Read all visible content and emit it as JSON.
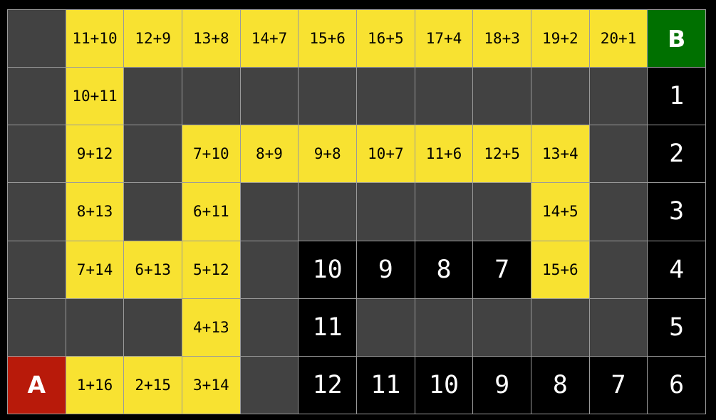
{
  "colors": {
    "path": "#f8e231",
    "wall": "#424242",
    "countdown": "#000000",
    "goal": "#007000",
    "start": "#b81a0a"
  },
  "grid": [
    [
      {
        "c": "d",
        "t": ""
      },
      {
        "c": "y",
        "t": "11+10"
      },
      {
        "c": "y",
        "t": "12+9"
      },
      {
        "c": "y",
        "t": "13+8"
      },
      {
        "c": "y",
        "t": "14+7"
      },
      {
        "c": "y",
        "t": "15+6"
      },
      {
        "c": "y",
        "t": "16+5"
      },
      {
        "c": "y",
        "t": "17+4"
      },
      {
        "c": "y",
        "t": "18+3"
      },
      {
        "c": "y",
        "t": "19+2"
      },
      {
        "c": "y",
        "t": "20+1"
      },
      {
        "c": "g",
        "t": "B"
      }
    ],
    [
      {
        "c": "d",
        "t": ""
      },
      {
        "c": "y",
        "t": "10+11"
      },
      {
        "c": "d",
        "t": ""
      },
      {
        "c": "d",
        "t": ""
      },
      {
        "c": "d",
        "t": ""
      },
      {
        "c": "d",
        "t": ""
      },
      {
        "c": "d",
        "t": ""
      },
      {
        "c": "d",
        "t": ""
      },
      {
        "c": "d",
        "t": ""
      },
      {
        "c": "d",
        "t": ""
      },
      {
        "c": "d",
        "t": ""
      },
      {
        "c": "k",
        "t": "1"
      }
    ],
    [
      {
        "c": "d",
        "t": ""
      },
      {
        "c": "y",
        "t": "9+12"
      },
      {
        "c": "d",
        "t": ""
      },
      {
        "c": "y",
        "t": "7+10"
      },
      {
        "c": "y",
        "t": "8+9"
      },
      {
        "c": "y",
        "t": "9+8"
      },
      {
        "c": "y",
        "t": "10+7"
      },
      {
        "c": "y",
        "t": "11+6"
      },
      {
        "c": "y",
        "t": "12+5"
      },
      {
        "c": "y",
        "t": "13+4"
      },
      {
        "c": "d",
        "t": ""
      },
      {
        "c": "k",
        "t": "2"
      }
    ],
    [
      {
        "c": "d",
        "t": ""
      },
      {
        "c": "y",
        "t": "8+13"
      },
      {
        "c": "d",
        "t": ""
      },
      {
        "c": "y",
        "t": "6+11"
      },
      {
        "c": "d",
        "t": ""
      },
      {
        "c": "d",
        "t": ""
      },
      {
        "c": "d",
        "t": ""
      },
      {
        "c": "d",
        "t": ""
      },
      {
        "c": "d",
        "t": ""
      },
      {
        "c": "y",
        "t": "14+5"
      },
      {
        "c": "d",
        "t": ""
      },
      {
        "c": "k",
        "t": "3"
      }
    ],
    [
      {
        "c": "d",
        "t": ""
      },
      {
        "c": "y",
        "t": "7+14"
      },
      {
        "c": "y",
        "t": "6+13"
      },
      {
        "c": "y",
        "t": "5+12"
      },
      {
        "c": "d",
        "t": ""
      },
      {
        "c": "k",
        "t": "10"
      },
      {
        "c": "k",
        "t": "9"
      },
      {
        "c": "k",
        "t": "8"
      },
      {
        "c": "k",
        "t": "7"
      },
      {
        "c": "y",
        "t": "15+6"
      },
      {
        "c": "d",
        "t": ""
      },
      {
        "c": "k",
        "t": "4"
      }
    ],
    [
      {
        "c": "d",
        "t": ""
      },
      {
        "c": "d",
        "t": ""
      },
      {
        "c": "d",
        "t": ""
      },
      {
        "c": "y",
        "t": "4+13"
      },
      {
        "c": "d",
        "t": ""
      },
      {
        "c": "k",
        "t": "11"
      },
      {
        "c": "d",
        "t": ""
      },
      {
        "c": "d",
        "t": ""
      },
      {
        "c": "d",
        "t": ""
      },
      {
        "c": "d",
        "t": ""
      },
      {
        "c": "d",
        "t": ""
      },
      {
        "c": "k",
        "t": "5"
      }
    ],
    [
      {
        "c": "r",
        "t": "A"
      },
      {
        "c": "y",
        "t": "1+16"
      },
      {
        "c": "y",
        "t": "2+15"
      },
      {
        "c": "y",
        "t": "3+14"
      },
      {
        "c": "d",
        "t": ""
      },
      {
        "c": "k",
        "t": "12"
      },
      {
        "c": "k",
        "t": "11"
      },
      {
        "c": "k",
        "t": "10"
      },
      {
        "c": "k",
        "t": "9"
      },
      {
        "c": "k",
        "t": "8"
      },
      {
        "c": "k",
        "t": "7"
      },
      {
        "c": "k",
        "t": "6"
      }
    ]
  ]
}
